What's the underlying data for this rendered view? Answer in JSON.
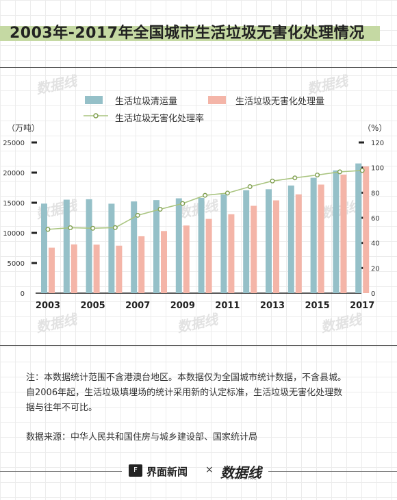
{
  "title": "2003年-2017年全国城市生活垃圾无害化处理情况",
  "watermark": "数据线",
  "chart_data": {
    "type": "bar",
    "categories": [
      "2003",
      "2004",
      "2005",
      "2006",
      "2007",
      "2008",
      "2009",
      "2010",
      "2011",
      "2012",
      "2013",
      "2014",
      "2015",
      "2016",
      "2017"
    ],
    "x_tick_labels": [
      "2003",
      "2005",
      "2007",
      "2009",
      "2011",
      "2013",
      "2015",
      "2017"
    ],
    "series": [
      {
        "name": "生活垃圾清运量",
        "type": "bar",
        "axis": "left",
        "color": "#95c0c8",
        "values": [
          14857,
          15509,
          15577,
          14841,
          15215,
          15438,
          15734,
          15805,
          16395,
          17081,
          17239,
          17860,
          19142,
          20362,
          21521
        ]
      },
      {
        "name": "生活垃圾无害化处理量",
        "type": "bar",
        "axis": "left",
        "color": "#f4b5a8",
        "values": [
          7545,
          8089,
          8051,
          7873,
          9438,
          10307,
          11220,
          12318,
          13090,
          14490,
          15394,
          16394,
          18013,
          19674,
          21034
        ]
      },
      {
        "name": "生活垃圾无害化处理率",
        "type": "line",
        "axis": "right",
        "color": "#a9c47f",
        "values": [
          50.8,
          52.1,
          51.7,
          52.2,
          62.0,
          66.8,
          71.4,
          77.9,
          79.7,
          84.8,
          89.3,
          91.8,
          94.1,
          96.6,
          97.7
        ]
      }
    ],
    "y_left": {
      "label": "（万吨）",
      "ticks": [
        0,
        5000,
        10000,
        15000,
        20000,
        25000
      ],
      "ylim": [
        0,
        25000
      ]
    },
    "y_right": {
      "label": "（%）",
      "ticks": [
        0,
        20,
        40,
        60,
        80,
        100,
        120
      ],
      "ylim": [
        0,
        120
      ]
    },
    "legend": "top-center"
  },
  "note": {
    "line1": "注：本数据统计范围不含港澳台地区。本数据仅为全国城市统计数据，不含县城。",
    "line2": "自2006年起，生活垃圾填埋场的统计采用新的认定标准，生活垃圾无害化处理数",
    "line3": "据与往年不可比。"
  },
  "source": "数据来源：中华人民共和国住房与城乡建设部、国家统计局",
  "footer": {
    "brand1": "界面新闻",
    "times": "×",
    "brand2": "数据线",
    "brand2_sub": "DATA WIRE",
    "logo_text": "F"
  }
}
